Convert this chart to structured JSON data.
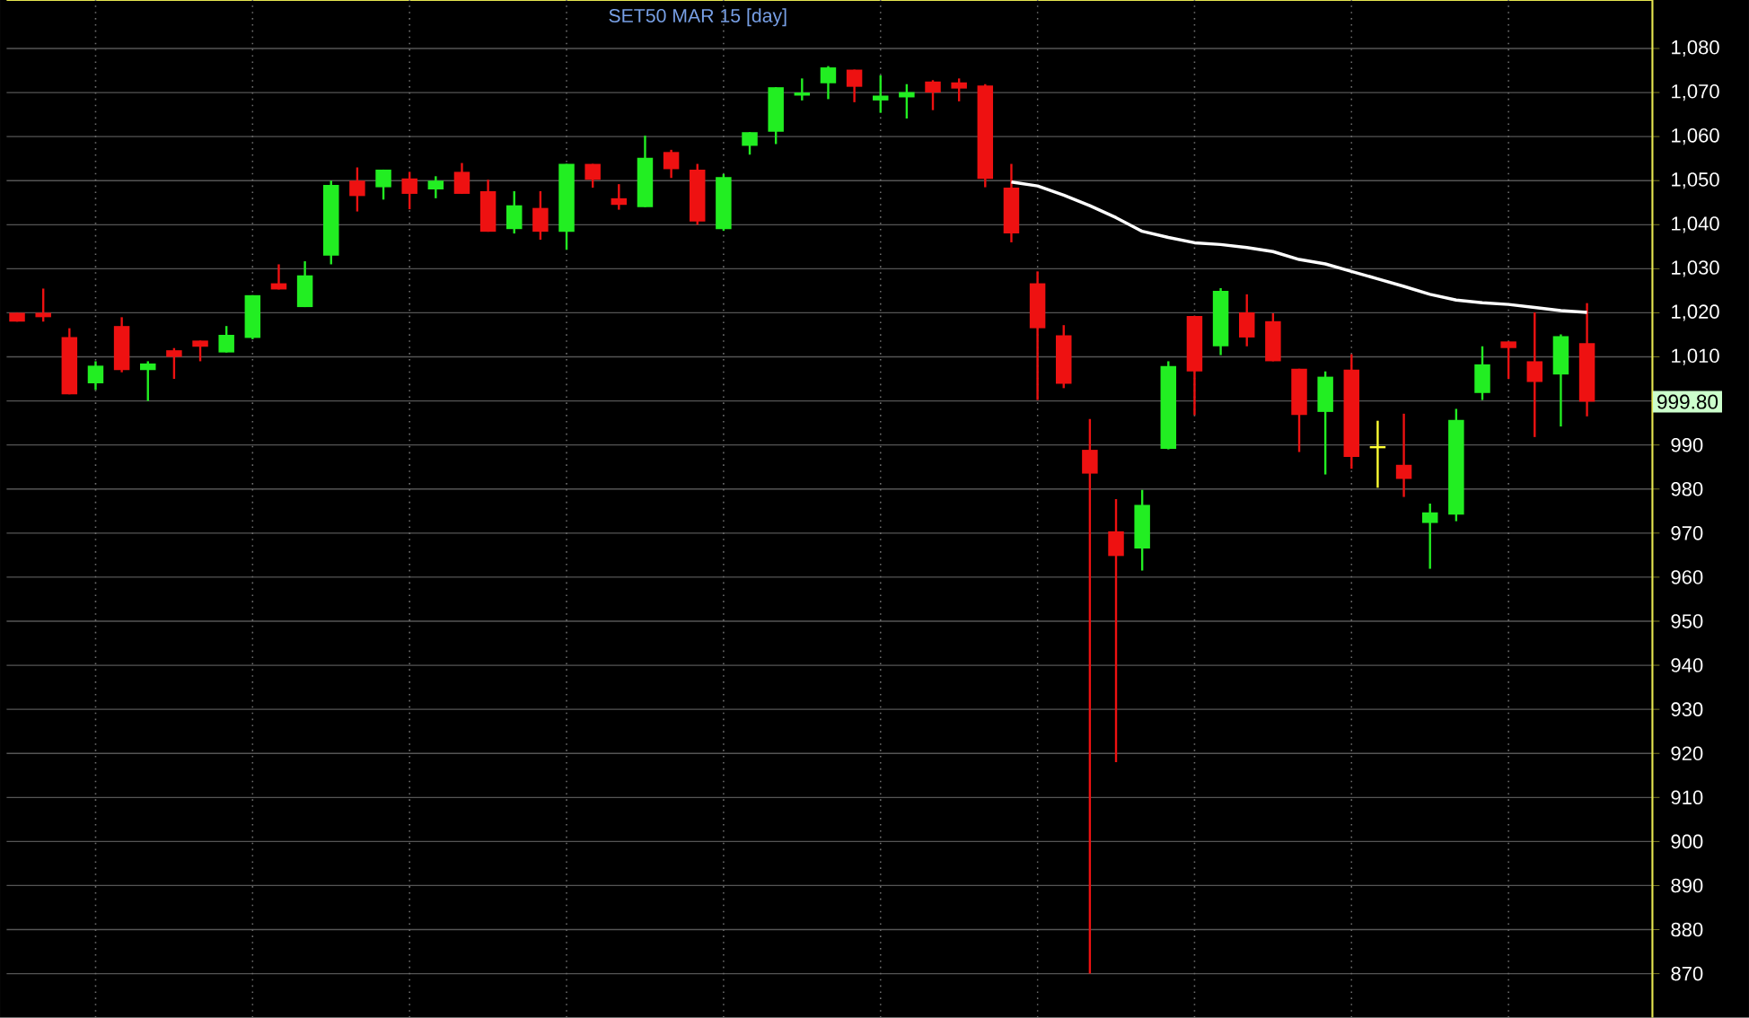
{
  "chart_data": {
    "type": "candlestick",
    "title": "SET50 MAR 15   [day]",
    "categories": [
      null,
      null,
      null,
      null,
      null,
      null,
      null,
      null,
      null,
      null,
      null,
      null,
      null,
      null,
      null,
      null,
      null,
      null,
      null,
      null,
      null,
      null,
      null,
      null,
      null,
      null,
      null,
      null,
      null,
      null,
      null,
      null,
      null,
      null,
      null,
      null,
      null,
      null,
      null,
      null,
      null,
      null,
      null,
      null,
      null,
      null,
      null,
      null,
      null,
      null,
      null,
      null,
      null,
      null,
      null,
      null,
      null,
      null,
      null,
      null,
      null
    ],
    "ohlc": [
      [
        1020,
        1020,
        1018,
        1018
      ],
      [
        1020,
        1025.5,
        1018,
        1019
      ],
      [
        1014.5,
        1016.5,
        1001.5,
        1001.5
      ],
      [
        1004,
        1009,
        1002.5,
        1008
      ],
      [
        1017,
        1019,
        1006.5,
        1007
      ],
      [
        1007,
        1009,
        1000,
        1008.5
      ],
      [
        1011.5,
        1012,
        1005,
        1010
      ],
      [
        1013.7,
        1013.7,
        1009,
        1012.3
      ],
      [
        1011,
        1017,
        1011,
        1015
      ],
      [
        1014.3,
        1024,
        1014,
        1024
      ],
      [
        1026.7,
        1031,
        1025.3,
        1025.3
      ],
      [
        1021.3,
        1031.7,
        1021.3,
        1028.5
      ],
      [
        1033,
        1050,
        1031,
        1049
      ],
      [
        1050,
        1053,
        1043,
        1046.5
      ],
      [
        1048.5,
        1052.5,
        1045.7,
        1052.5
      ],
      [
        1050.5,
        1052,
        1043.5,
        1047
      ],
      [
        1048,
        1051,
        1046,
        1050
      ],
      [
        1052,
        1054,
        1047,
        1047
      ],
      [
        1047.6,
        1050.2,
        1038.4,
        1038.4
      ],
      [
        1039,
        1047.6,
        1038,
        1044.4
      ],
      [
        1043.8,
        1047.6,
        1036.6,
        1038.4
      ],
      [
        1038.4,
        1053.8,
        1034.3,
        1053.8
      ],
      [
        1053.8,
        1053.8,
        1048.4,
        1050.2
      ],
      [
        1046,
        1049.2,
        1043.4,
        1044.5
      ],
      [
        1044,
        1060.2,
        1044,
        1055.2
      ],
      [
        1056.5,
        1057,
        1050.6,
        1052.6
      ],
      [
        1052.5,
        1053.8,
        1040,
        1040.7
      ],
      [
        1039,
        1051.5,
        1038.6,
        1050.8
      ],
      [
        1057.9,
        1061,
        1055.9,
        1061
      ],
      [
        1061.1,
        1071.2,
        1058.3,
        1071.2
      ],
      [
        1069.3,
        1073.2,
        1068.2,
        1070
      ],
      [
        1072.1,
        1076,
        1068.5,
        1075.7
      ],
      [
        1075.2,
        1075.2,
        1067.8,
        1071.3
      ],
      [
        1068.2,
        1073.9,
        1065.4,
        1069.3
      ],
      [
        1068.9,
        1071.9,
        1064.1,
        1070.1
      ],
      [
        1072.5,
        1072.8,
        1066,
        1070
      ],
      [
        1072.3,
        1073.2,
        1068,
        1070.9
      ],
      [
        1071.6,
        1071.9,
        1048.5,
        1050.4
      ],
      [
        1048.4,
        1053.8,
        1036,
        1038
      ],
      [
        1026.7,
        1029.4,
        1000.2,
        1016.5
      ],
      [
        1014.9,
        1017.2,
        1002.9,
        1003.9
      ],
      [
        988.9,
        995.9,
        870,
        983.5
      ],
      [
        970.4,
        977.7,
        918,
        964.8
      ],
      [
        966.5,
        979.8,
        961.5,
        976.4
      ],
      [
        989.1,
        1009,
        989,
        1007.9
      ],
      [
        1019.3,
        1019.3,
        996.8,
        1006.7
      ],
      [
        1012.4,
        1025.6,
        1010.4,
        1025
      ],
      [
        1020.1,
        1024.2,
        1012.4,
        1014.4
      ],
      [
        1018.1,
        1019.9,
        1009,
        1009
      ],
      [
        1007.3,
        1007.3,
        988.4,
        996.8
      ],
      [
        997.5,
        1006.7,
        983.3,
        1005.5
      ],
      [
        1007.1,
        1010.6,
        984.6,
        987.3
      ],
      [
        989.5,
        995.5,
        980.3,
        989.5
      ],
      [
        985.5,
        997.1,
        978.2,
        982.3
      ],
      [
        972.3,
        976.7,
        961.9,
        974.7
      ],
      [
        974.2,
        998.2,
        972.7,
        995.7
      ],
      [
        1001.8,
        1012.4,
        1000.2,
        1008.3
      ],
      [
        1013.5,
        1013.5,
        1005,
        1012
      ],
      [
        1009,
        1020.1,
        991.8,
        1004.3
      ],
      [
        1006,
        1015.1,
        994.2,
        1014.7
      ],
      [
        1013.1,
        1022.2,
        996.5,
        999.8
      ]
    ],
    "colors": [
      "#ee1111",
      "#ee1111",
      "#ee1111",
      "#22ee22",
      "#ee1111",
      "#22ee22",
      "#ee1111",
      "#ee1111",
      "#22ee22",
      "#22ee22",
      "#ee1111",
      "#22ee22",
      "#22ee22",
      "#ee1111",
      "#22ee22",
      "#ee1111",
      "#22ee22",
      "#ee1111",
      "#ee1111",
      "#22ee22",
      "#ee1111",
      "#22ee22",
      "#ee1111",
      "#ee1111",
      "#22ee22",
      "#ee1111",
      "#ee1111",
      "#22ee22",
      "#22ee22",
      "#22ee22",
      "#22ee22",
      "#22ee22",
      "#ee1111",
      "#22ee22",
      "#22ee22",
      "#ee1111",
      "#ee1111",
      "#ee1111",
      "#ee1111",
      "#ee1111",
      "#ee1111",
      "#ee1111",
      "#ee1111",
      "#22ee22",
      "#22ee22",
      "#ee1111",
      "#22ee22",
      "#ee1111",
      "#ee1111",
      "#ee1111",
      "#22ee22",
      "#ee1111",
      "#ffff33",
      "#ee1111",
      "#22ee22",
      "#22ee22",
      "#22ee22",
      "#ee1111",
      "#ee1111",
      "#22ee22",
      "#ee1111"
    ],
    "series": [
      {
        "type": "line",
        "color": "#ffffff",
        "values": [
          null,
          null,
          null,
          null,
          null,
          null,
          null,
          null,
          null,
          null,
          null,
          null,
          null,
          null,
          null,
          null,
          null,
          null,
          null,
          null,
          null,
          null,
          null,
          null,
          null,
          null,
          null,
          null,
          null,
          null,
          null,
          null,
          null,
          null,
          null,
          null,
          null,
          null,
          1049.7,
          1048.8,
          1046.7,
          1044.3,
          1041.6,
          1038.5,
          1037.1,
          1035.9,
          1035.5,
          1034.8,
          1033.9,
          1032.1,
          1031.1,
          1029.4,
          1027.7,
          1026,
          1024.2,
          1022.9,
          1022.3,
          1021.9,
          1021.2,
          1020.5,
          1020.1
        ]
      }
    ],
    "ylim": [
      860,
      1091
    ],
    "yticks": [
      {
        "value": 870,
        "label": "870"
      },
      {
        "value": 880,
        "label": "880"
      },
      {
        "value": 890,
        "label": "890"
      },
      {
        "value": 900,
        "label": "900"
      },
      {
        "value": 910,
        "label": "910"
      },
      {
        "value": 920,
        "label": "920"
      },
      {
        "value": 930,
        "label": "930"
      },
      {
        "value": 940,
        "label": "940"
      },
      {
        "value": 950,
        "label": "950"
      },
      {
        "value": 960,
        "label": "960"
      },
      {
        "value": 970,
        "label": "970"
      },
      {
        "value": 980,
        "label": "980"
      },
      {
        "value": 990,
        "label": "990"
      },
      {
        "value": 1000,
        "label": null
      },
      {
        "value": 1010,
        "label": "1,010"
      },
      {
        "value": 1020,
        "label": "1,020"
      },
      {
        "value": 1030,
        "label": "1,030"
      },
      {
        "value": 1040,
        "label": "1,040"
      },
      {
        "value": 1050,
        "label": "1,050"
      },
      {
        "value": 1060,
        "label": "1,060"
      },
      {
        "value": 1070,
        "label": "1,070"
      },
      {
        "value": 1080,
        "label": "1,080"
      }
    ],
    "grid": true,
    "tick_labels": "y",
    "annotations": [
      "999.80"
    ]
  }
}
